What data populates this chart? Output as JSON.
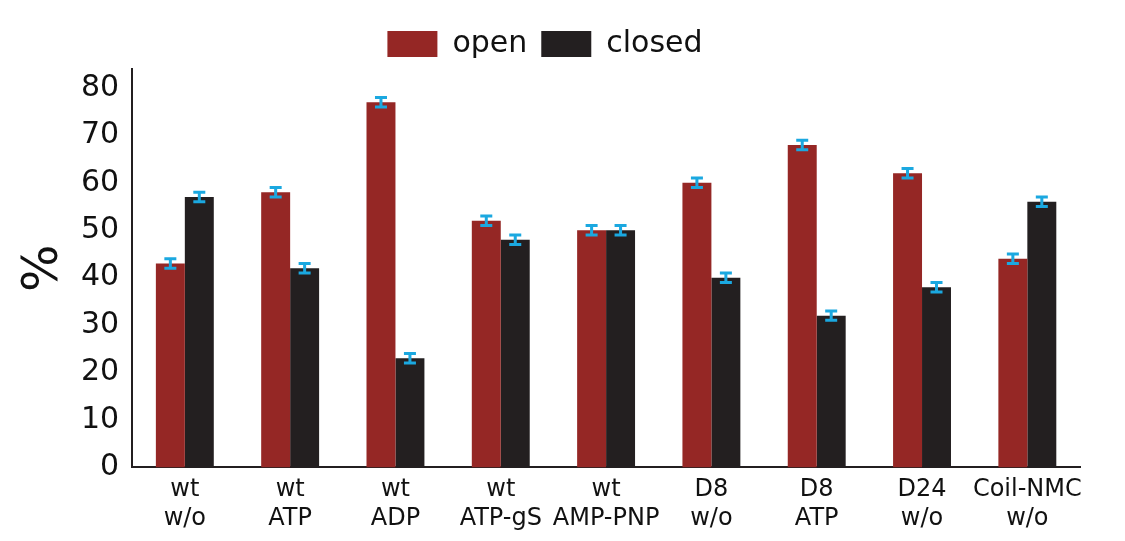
{
  "chart_data": {
    "type": "bar",
    "ylabel": "%",
    "categories": [
      "wt\nw/o",
      "wt\nATP",
      "wt\nADP",
      "wt\nATP-gS",
      "wt\nAMP-PNP",
      "D8\nw/o",
      "D8\nATP",
      "D24\nw/o",
      "Coil-NMC\nw/o"
    ],
    "series": [
      {
        "name": "open",
        "color": "#952725",
        "values": [
          43,
          58,
          77,
          52,
          50,
          60,
          68,
          62,
          44
        ],
        "errors": [
          1,
          1,
          1,
          1,
          1,
          1,
          1,
          1,
          1
        ]
      },
      {
        "name": "closed",
        "color": "#231f20",
        "values": [
          57,
          42,
          23,
          48,
          50,
          40,
          32,
          38,
          56
        ],
        "errors": [
          1,
          1,
          1,
          1,
          1,
          1,
          1,
          1,
          1
        ]
      }
    ],
    "ylim": [
      0,
      84
    ],
    "yticks": [
      0,
      10,
      20,
      30,
      40,
      50,
      60,
      70,
      80
    ],
    "grid": false,
    "legend": "top"
  }
}
